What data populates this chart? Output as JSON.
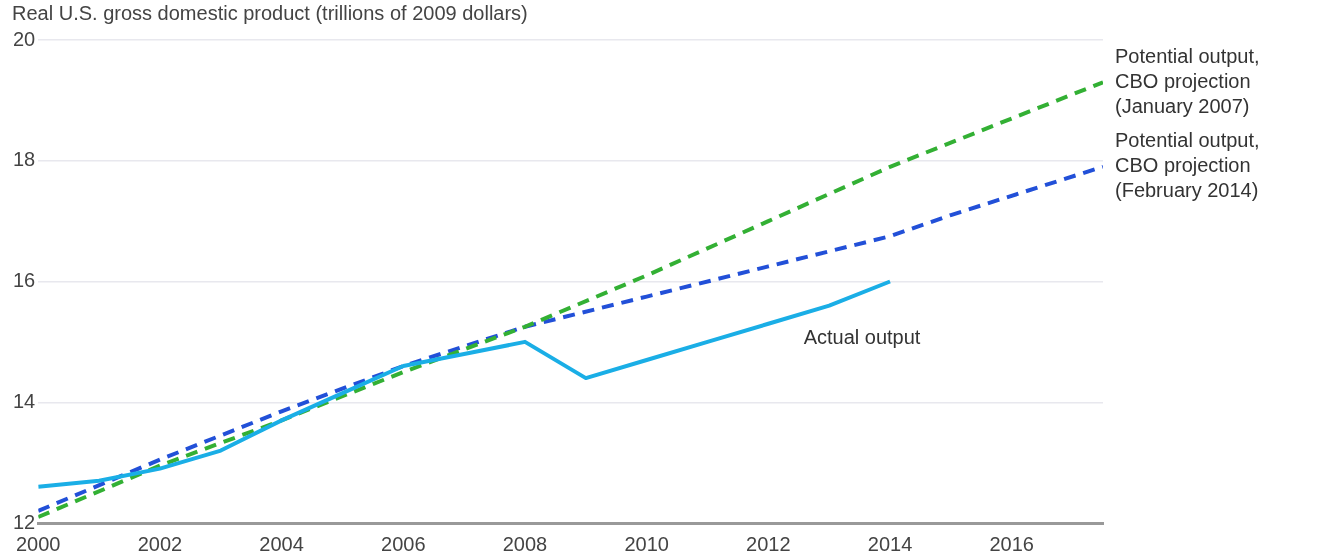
{
  "chart_data": {
    "type": "line",
    "title": "Real U.S. gross domestic product (trillions of 2009 dollars)",
    "xlim": [
      2000,
      2017.5
    ],
    "xticks": [
      2000,
      2002,
      2004,
      2006,
      2008,
      2010,
      2012,
      2014,
      2016
    ],
    "ylim": [
      12,
      20
    ],
    "yticks": [
      12,
      14,
      16,
      18,
      20
    ],
    "grid": "y",
    "legend": false,
    "marker": "none",
    "series": [
      {
        "name": "Actual output",
        "color": "#1aaee6",
        "line_style": "solid",
        "x": [
          2000,
          2001,
          2002,
          2003,
          2004,
          2005,
          2006,
          2007,
          2008,
          2009,
          2010,
          2011,
          2012,
          2013,
          2014
        ],
        "values": [
          12.6,
          12.7,
          12.9,
          13.2,
          13.7,
          14.15,
          14.6,
          14.8,
          15.0,
          14.4,
          14.7,
          15.0,
          15.3,
          15.6,
          16.0
        ]
      },
      {
        "name": "Potential output, CBO projection (January 2007)",
        "color": "#33b034",
        "line_style": "dashed",
        "x": [
          2000,
          2002,
          2004,
          2006,
          2008,
          2010,
          2012,
          2014,
          2017.5
        ],
        "values": [
          12.1,
          12.95,
          13.7,
          14.5,
          15.25,
          16.1,
          17.0,
          17.9,
          19.3
        ]
      },
      {
        "name": "Potential output, CBO projection (February 2014)",
        "color": "#2250d8",
        "line_style": "dashed",
        "x": [
          2000,
          2002,
          2004,
          2006,
          2008,
          2010,
          2012,
          2014,
          2015,
          2017.5
        ],
        "values": [
          12.2,
          13.05,
          13.85,
          14.6,
          15.25,
          15.75,
          16.25,
          16.75,
          17.1,
          17.9
        ]
      }
    ]
  }
}
